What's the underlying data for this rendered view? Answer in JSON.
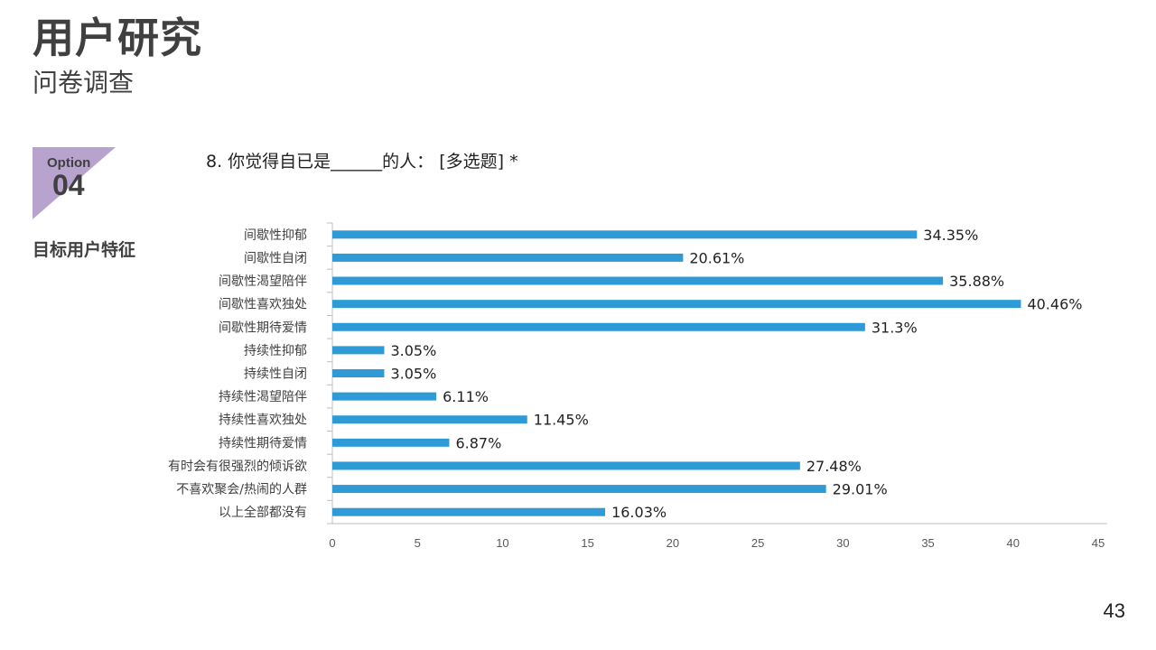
{
  "header": {
    "title": "用户研究",
    "subtitle": "问卷调查"
  },
  "option": {
    "label": "Option",
    "number": "04"
  },
  "section_label": "目标用户特征",
  "question": "8. 你觉得自已是______的人：   [多选题] *",
  "page_number": "43",
  "colors": {
    "bar": "#2E9AD6",
    "option_triangle": "#B8A3CF",
    "axis": "#BFBFBF"
  },
  "chart_data": {
    "type": "bar",
    "orientation": "horizontal",
    "categories": [
      "间歇性抑郁",
      "间歇性自闭",
      "间歇性渴望陪伴",
      "间歇性喜欢独处",
      "间歇性期待爱情",
      "持续性抑郁",
      "持续性自闭",
      "持续性渴望陪伴",
      "持续性喜欢独处",
      "持续性期待爱情",
      "有时会有很强烈的倾诉欲",
      "不喜欢聚会/热闹的人群",
      "以上全部都没有"
    ],
    "values": [
      34.35,
      20.61,
      35.88,
      40.46,
      31.3,
      3.05,
      3.05,
      6.11,
      11.45,
      6.87,
      27.48,
      29.01,
      16.03
    ],
    "value_labels": [
      "34.35%",
      "20.61%",
      "35.88%",
      "40.46%",
      "31.3%",
      "3.05%",
      "3.05%",
      "6.11%",
      "11.45%",
      "6.87%",
      "27.48%",
      "29.01%",
      "16.03%"
    ],
    "xlim": [
      0,
      45
    ],
    "xticks": [
      "0",
      "5",
      "10",
      "15",
      "20",
      "25",
      "30",
      "35",
      "40",
      "45"
    ],
    "grid": false
  }
}
